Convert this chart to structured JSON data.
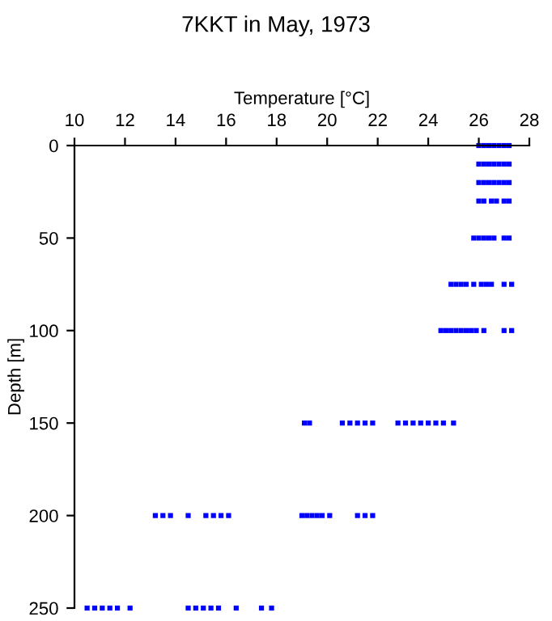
{
  "chart_data": {
    "type": "scatter",
    "title": "7KKT in May, 1973",
    "xlabel": "Temperature [°C]",
    "ylabel": "Depth [m]",
    "xlim": [
      10,
      28
    ],
    "xticks": [
      10,
      12,
      14,
      16,
      18,
      20,
      22,
      24,
      26,
      28
    ],
    "ylim": [
      250,
      0
    ],
    "yticks": [
      0,
      50,
      100,
      150,
      200,
      250
    ],
    "grid": false,
    "marker": "square",
    "series": [
      {
        "color": "#0000ff",
        "x": [
          26.0,
          26.2,
          26.4,
          26.6,
          26.8,
          27.0,
          27.2,
          26.0,
          26.2,
          26.4,
          26.6,
          26.8,
          27.0,
          27.2,
          26.0,
          26.2,
          26.4,
          26.6,
          26.8,
          27.0,
          27.2,
          26.0,
          26.2,
          26.5,
          26.7,
          27.0,
          27.2,
          25.8,
          26.0,
          26.2,
          26.4,
          26.6,
          27.0,
          27.2,
          24.9,
          25.1,
          25.3,
          25.5,
          25.8,
          26.1,
          26.3,
          26.5,
          27.0,
          27.3,
          24.5,
          24.7,
          24.9,
          25.1,
          25.3,
          25.5,
          25.7,
          25.9,
          26.2,
          27.0,
          27.3,
          19.1,
          19.3,
          20.6,
          20.9,
          21.2,
          21.5,
          21.8,
          22.8,
          23.1,
          23.4,
          23.7,
          24.0,
          24.3,
          24.6,
          25.0,
          13.2,
          13.5,
          13.8,
          14.5,
          15.2,
          15.5,
          15.8,
          16.1,
          19.0,
          19.2,
          19.4,
          19.6,
          19.8,
          20.1,
          21.2,
          21.5,
          21.8,
          10.5,
          10.8,
          11.1,
          11.4,
          11.7,
          12.2,
          14.5,
          14.8,
          15.1,
          15.4,
          15.7,
          16.4,
          17.4,
          17.8
        ],
        "values": [
          0,
          0,
          0,
          0,
          0,
          0,
          0,
          10,
          10,
          10,
          10,
          10,
          10,
          10,
          20,
          20,
          20,
          20,
          20,
          20,
          20,
          30,
          30,
          30,
          30,
          30,
          30,
          50,
          50,
          50,
          50,
          50,
          50,
          50,
          75,
          75,
          75,
          75,
          75,
          75,
          75,
          75,
          75,
          75,
          100,
          100,
          100,
          100,
          100,
          100,
          100,
          100,
          100,
          100,
          100,
          150,
          150,
          150,
          150,
          150,
          150,
          150,
          150,
          150,
          150,
          150,
          150,
          150,
          150,
          150,
          200,
          200,
          200,
          200,
          200,
          200,
          200,
          200,
          200,
          200,
          200,
          200,
          200,
          200,
          200,
          200,
          200,
          250,
          250,
          250,
          250,
          250,
          250,
          250,
          250,
          250,
          250,
          250,
          250,
          250,
          250
        ]
      }
    ]
  }
}
